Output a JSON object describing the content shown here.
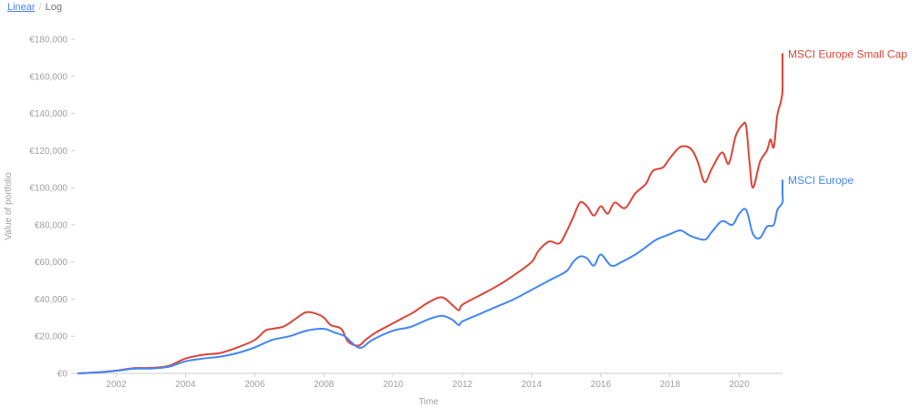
{
  "toggle": {
    "linear_label": "Linear",
    "log_label": "Log",
    "active": "Linear"
  },
  "colors": {
    "small_cap": "#db4437",
    "europe": "#4285f4",
    "axis": "#9e9e9e"
  },
  "chart_data": {
    "type": "line",
    "xlabel": "Time",
    "ylabel": "Value of portfolio",
    "xlim": [
      2000.8,
      2021.25
    ],
    "ylim": [
      0,
      180000
    ],
    "x_ticks": [
      2002,
      2004,
      2006,
      2008,
      2010,
      2012,
      2014,
      2016,
      2018,
      2020
    ],
    "y_ticks": [
      0,
      20000,
      40000,
      60000,
      80000,
      100000,
      120000,
      140000,
      160000,
      180000
    ],
    "y_tick_labels": [
      "€0",
      "€20,000",
      "€40,000",
      "€60,000",
      "€80,000",
      "€100,000",
      "€120,000",
      "€140,000",
      "€160,000",
      "€180,000"
    ],
    "grid": false,
    "legend": "end-of-line labels",
    "series": [
      {
        "name": "MSCI Europe Small Cap",
        "color": "#db4437",
        "points": [
          [
            2000.9,
            0
          ],
          [
            2001.5,
            600
          ],
          [
            2002.0,
            1500
          ],
          [
            2002.5,
            2800
          ],
          [
            2003.0,
            3000
          ],
          [
            2003.5,
            4000
          ],
          [
            2004.0,
            8000
          ],
          [
            2004.5,
            10000
          ],
          [
            2005.0,
            11000
          ],
          [
            2005.5,
            14000
          ],
          [
            2006.0,
            18000
          ],
          [
            2006.3,
            23000
          ],
          [
            2006.5,
            24000
          ],
          [
            2006.8,
            25000
          ],
          [
            2007.0,
            27000
          ],
          [
            2007.3,
            31000
          ],
          [
            2007.5,
            33000
          ],
          [
            2007.8,
            32000
          ],
          [
            2008.0,
            30000
          ],
          [
            2008.2,
            26000
          ],
          [
            2008.5,
            24000
          ],
          [
            2008.7,
            17000
          ],
          [
            2009.0,
            15000
          ],
          [
            2009.2,
            18000
          ],
          [
            2009.5,
            22000
          ],
          [
            2010.0,
            27000
          ],
          [
            2010.3,
            30000
          ],
          [
            2010.6,
            33000
          ],
          [
            2011.0,
            38000
          ],
          [
            2011.4,
            41000
          ],
          [
            2011.7,
            37000
          ],
          [
            2011.9,
            34000
          ],
          [
            2012.0,
            37000
          ],
          [
            2012.5,
            42000
          ],
          [
            2013.0,
            47000
          ],
          [
            2013.5,
            53000
          ],
          [
            2014.0,
            60000
          ],
          [
            2014.2,
            66000
          ],
          [
            2014.5,
            71000
          ],
          [
            2014.8,
            70000
          ],
          [
            2015.0,
            76000
          ],
          [
            2015.2,
            84000
          ],
          [
            2015.4,
            92000
          ],
          [
            2015.6,
            90000
          ],
          [
            2015.8,
            85000
          ],
          [
            2016.0,
            90000
          ],
          [
            2016.2,
            86000
          ],
          [
            2016.4,
            92000
          ],
          [
            2016.7,
            89000
          ],
          [
            2017.0,
            97000
          ],
          [
            2017.3,
            102000
          ],
          [
            2017.5,
            109000
          ],
          [
            2017.8,
            111000
          ],
          [
            2018.0,
            116000
          ],
          [
            2018.3,
            122000
          ],
          [
            2018.6,
            121000
          ],
          [
            2018.8,
            114000
          ],
          [
            2019.0,
            103000
          ],
          [
            2019.2,
            110000
          ],
          [
            2019.5,
            119000
          ],
          [
            2019.7,
            113000
          ],
          [
            2019.9,
            128000
          ],
          [
            2020.1,
            134000
          ],
          [
            2020.2,
            133000
          ],
          [
            2020.3,
            113000
          ],
          [
            2020.4,
            100000
          ],
          [
            2020.6,
            114000
          ],
          [
            2020.8,
            120000
          ],
          [
            2020.9,
            126000
          ],
          [
            2021.0,
            122000
          ],
          [
            2021.1,
            139000
          ],
          [
            2021.2,
            146000
          ],
          [
            2021.4,
            152000
          ],
          [
            2021.6,
            160000
          ],
          [
            2021.8,
            168000
          ],
          [
            2021.9,
            172000
          ]
        ]
      },
      {
        "name": "MSCI Europe",
        "color": "#4285f4",
        "points": [
          [
            2000.9,
            0
          ],
          [
            2001.5,
            600
          ],
          [
            2002.0,
            1400
          ],
          [
            2002.5,
            2500
          ],
          [
            2003.0,
            2600
          ],
          [
            2003.5,
            3500
          ],
          [
            2004.0,
            6500
          ],
          [
            2004.5,
            8000
          ],
          [
            2005.0,
            9000
          ],
          [
            2005.5,
            11000
          ],
          [
            2006.0,
            14000
          ],
          [
            2006.5,
            18000
          ],
          [
            2007.0,
            20000
          ],
          [
            2007.5,
            23000
          ],
          [
            2008.0,
            24000
          ],
          [
            2008.3,
            22000
          ],
          [
            2008.6,
            20000
          ],
          [
            2008.9,
            15000
          ],
          [
            2009.1,
            14000
          ],
          [
            2009.4,
            18000
          ],
          [
            2010.0,
            23000
          ],
          [
            2010.5,
            25000
          ],
          [
            2011.0,
            29000
          ],
          [
            2011.4,
            31000
          ],
          [
            2011.7,
            29000
          ],
          [
            2011.9,
            26000
          ],
          [
            2012.0,
            28000
          ],
          [
            2012.5,
            32000
          ],
          [
            2013.0,
            36000
          ],
          [
            2013.5,
            40000
          ],
          [
            2014.0,
            45000
          ],
          [
            2014.5,
            50000
          ],
          [
            2015.0,
            55000
          ],
          [
            2015.2,
            60000
          ],
          [
            2015.4,
            63000
          ],
          [
            2015.6,
            62000
          ],
          [
            2015.8,
            58000
          ],
          [
            2016.0,
            64000
          ],
          [
            2016.3,
            58000
          ],
          [
            2016.6,
            60000
          ],
          [
            2017.0,
            64000
          ],
          [
            2017.3,
            68000
          ],
          [
            2017.6,
            72000
          ],
          [
            2018.0,
            75000
          ],
          [
            2018.3,
            77000
          ],
          [
            2018.6,
            74000
          ],
          [
            2019.0,
            72000
          ],
          [
            2019.2,
            76000
          ],
          [
            2019.5,
            82000
          ],
          [
            2019.8,
            80000
          ],
          [
            2020.0,
            86000
          ],
          [
            2020.2,
            88000
          ],
          [
            2020.4,
            75000
          ],
          [
            2020.6,
            73000
          ],
          [
            2020.8,
            79000
          ],
          [
            2021.0,
            80000
          ],
          [
            2021.1,
            88000
          ],
          [
            2021.3,
            92000
          ],
          [
            2021.6,
            97000
          ],
          [
            2021.8,
            102000
          ],
          [
            2021.9,
            104000
          ]
        ]
      }
    ]
  }
}
